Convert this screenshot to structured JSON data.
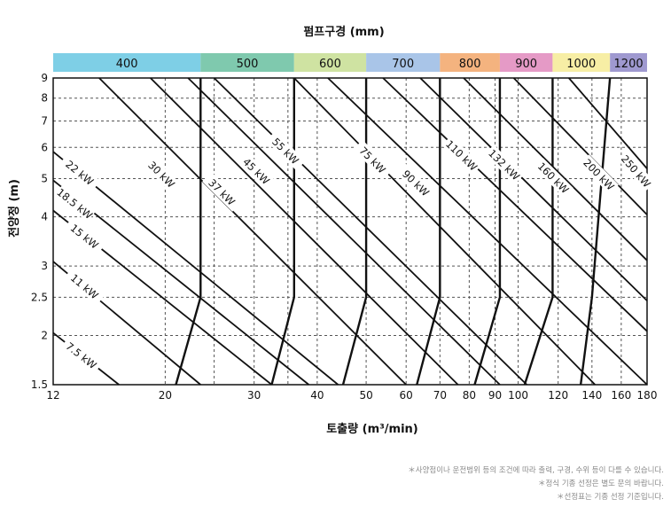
{
  "chart_data": {
    "type": "line",
    "title": "펌프구경 (mm)",
    "xlabel": "토출량 (m³/min)",
    "ylabel": "전양정 (m)",
    "x_scale": "log",
    "y_scale": "log",
    "xlim": [
      12,
      180
    ],
    "ylim": [
      1.5,
      9
    ],
    "grid": true,
    "x_ticks": [
      12,
      20,
      30,
      40,
      50,
      60,
      70,
      80,
      90,
      100,
      120,
      140,
      160,
      180
    ],
    "x_minor_gridlines": [
      25,
      35
    ],
    "y_ticks": [
      1.5,
      2,
      2.5,
      3,
      4,
      5,
      6,
      7,
      8,
      9
    ],
    "pump_bore_bands": [
      {
        "label": "400",
        "from": 12,
        "to": 23.5,
        "color": "#7ecfe6"
      },
      {
        "label": "500",
        "from": 23.5,
        "to": 36,
        "color": "#7fc9ae"
      },
      {
        "label": "600",
        "from": 36,
        "to": 50,
        "color": "#cfe3a2"
      },
      {
        "label": "700",
        "from": 50,
        "to": 70,
        "color": "#a9c5e8"
      },
      {
        "label": "800",
        "from": 70,
        "to": 92,
        "color": "#f4b37f"
      },
      {
        "label": "900",
        "from": 92,
        "to": 117,
        "color": "#e59ac6"
      },
      {
        "label": "1000",
        "from": 117,
        "to": 152,
        "color": "#f7eea5"
      },
      {
        "label": "1200",
        "from": 152,
        "to": 180,
        "color": "#9f99d0"
      }
    ],
    "bore_boundaries": [
      {
        "x_top": 23.5,
        "x_knee": 23.5,
        "x_bottom": 21.0
      },
      {
        "x_top": 36,
        "x_knee": 36,
        "x_bottom": 32.5
      },
      {
        "x_top": 50,
        "x_knee": 50,
        "x_bottom": 45
      },
      {
        "x_top": 70,
        "x_knee": 70,
        "x_bottom": 63
      },
      {
        "x_top": 92,
        "x_knee": 92,
        "x_bottom": 82
      },
      {
        "x_top": 117,
        "x_knee": 117,
        "x_bottom": 103
      },
      {
        "x_top": 152,
        "x_knee": 140,
        "x_bottom": 133
      },
      {
        "x_top": 180,
        "x_knee": 180,
        "x_bottom": 180
      }
    ],
    "series": [
      {
        "name": "7.5 kW",
        "x": [
          12,
          16.2
        ],
        "y": [
          2.03,
          1.5
        ]
      },
      {
        "name": "11 kW",
        "x": [
          12,
          23.5
        ],
        "y": [
          3.08,
          1.5
        ]
      },
      {
        "name": "15 kW",
        "x": [
          12,
          32.5
        ],
        "y": [
          4.15,
          1.5
        ]
      },
      {
        "name": "18.5 kW",
        "x": [
          12,
          38.5
        ],
        "y": [
          4.95,
          1.5
        ]
      },
      {
        "name": "22 kW",
        "x": [
          12,
          44
        ],
        "y": [
          5.85,
          1.5
        ]
      },
      {
        "name": "30 kW",
        "x": [
          14.8,
          60
        ],
        "y": [
          9,
          1.5
        ]
      },
      {
        "name": "37 kW",
        "x": [
          18.7,
          76
        ],
        "y": [
          9,
          1.5
        ]
      },
      {
        "name": "45 kW",
        "x": [
          22.2,
          92
        ],
        "y": [
          9,
          1.5
        ]
      },
      {
        "name": "55 kW",
        "x": [
          25,
          104
        ],
        "y": [
          9,
          1.5
        ]
      },
      {
        "name": "75 kW",
        "x": [
          36,
          142
        ],
        "y": [
          9,
          1.5
        ]
      },
      {
        "name": "90 kW",
        "x": [
          42,
          180
        ],
        "y": [
          9,
          1.5
        ]
      },
      {
        "name": "110 kW",
        "x": [
          54,
          180
        ],
        "y": [
          9,
          2.05
        ]
      },
      {
        "name": "132 kW",
        "x": [
          64,
          180
        ],
        "y": [
          9,
          2.45
        ]
      },
      {
        "name": "160 kW",
        "x": [
          78,
          180
        ],
        "y": [
          9,
          3.1
        ]
      },
      {
        "name": "200 kW",
        "x": [
          98,
          180
        ],
        "y": [
          9,
          4.05
        ]
      },
      {
        "name": "250 kW",
        "x": [
          126,
          180
        ],
        "y": [
          9,
          5.3
        ]
      }
    ]
  },
  "notes": [
    "＊사양점이나 운전범위 등의 조건에 따라 출력, 구경, 수위 등이 다를 수 있습니다.",
    "＊정식 기종 선정은 별도 문의 바랍니다.",
    "＊선정표는 기종 선정 기준입니다."
  ]
}
